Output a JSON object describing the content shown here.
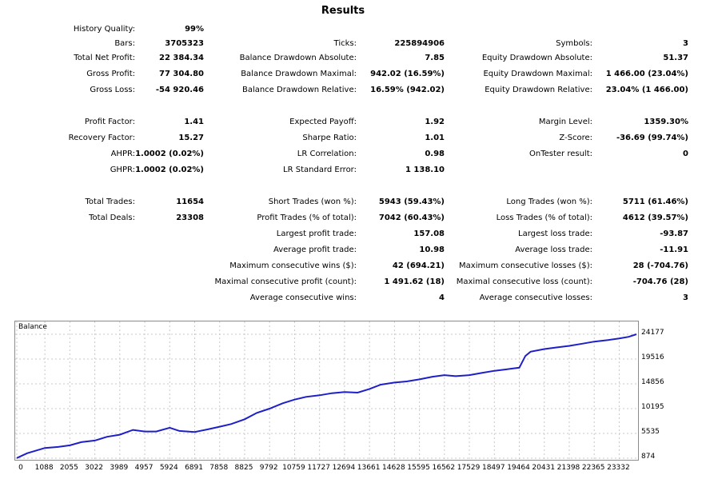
{
  "report": {
    "title": "Results",
    "stats": [
      {
        "id": "history-quality",
        "label": "History Quality:",
        "value": "99%",
        "col": 0,
        "row": 0
      },
      {
        "id": "bars",
        "label": "Bars:",
        "value": "3705323",
        "col": 0,
        "row": 1
      },
      {
        "id": "total-net-profit",
        "label": "Total Net Profit:",
        "value": "22 384.34",
        "col": 0,
        "row": 2
      },
      {
        "id": "gross-profit",
        "label": "Gross Profit:",
        "value": "77 304.80",
        "col": 0,
        "row": 3
      },
      {
        "id": "gross-loss",
        "label": "Gross Loss:",
        "value": "-54 920.46",
        "col": 0,
        "row": 4
      },
      {
        "id": "profit-factor",
        "label": "Profit Factor:",
        "value": "1.41",
        "col": 0,
        "row": 6
      },
      {
        "id": "recovery-factor",
        "label": "Recovery Factor:",
        "value": "15.27",
        "col": 0,
        "row": 7
      },
      {
        "id": "ahpr",
        "label": "AHPR:",
        "value": "1.0002 (0.02%)",
        "col": 0,
        "row": 8
      },
      {
        "id": "ghpr",
        "label": "GHPR:",
        "value": "1.0002 (0.02%)",
        "col": 0,
        "row": 9
      },
      {
        "id": "total-trades",
        "label": "Total Trades:",
        "value": "11654",
        "col": 0,
        "row": 11
      },
      {
        "id": "total-deals",
        "label": "Total Deals:",
        "value": "23308",
        "col": 0,
        "row": 12
      },
      {
        "id": "ticks",
        "label": "Ticks:",
        "value": "225894906",
        "col": 1,
        "row": 1
      },
      {
        "id": "balance-dd-absolute",
        "label": "Balance Drawdown Absolute:",
        "value": "7.85",
        "col": 1,
        "row": 2
      },
      {
        "id": "balance-dd-maximal",
        "label": "Balance Drawdown Maximal:",
        "value": "942.02 (16.59%)",
        "col": 1,
        "row": 3
      },
      {
        "id": "balance-dd-relative",
        "label": "Balance Drawdown Relative:",
        "value": "16.59% (942.02)",
        "col": 1,
        "row": 4
      },
      {
        "id": "expected-payoff",
        "label": "Expected Payoff:",
        "value": "1.92",
        "col": 1,
        "row": 6
      },
      {
        "id": "sharpe-ratio",
        "label": "Sharpe Ratio:",
        "value": "1.01",
        "col": 1,
        "row": 7
      },
      {
        "id": "lr-correlation",
        "label": "LR Correlation:",
        "value": "0.98",
        "col": 1,
        "row": 8
      },
      {
        "id": "lr-standard-error",
        "label": "LR Standard Error:",
        "value": "1 138.10",
        "col": 1,
        "row": 9
      },
      {
        "id": "short-trades",
        "label": "Short Trades (won %):",
        "value": "5943 (59.43%)",
        "col": 1,
        "row": 11
      },
      {
        "id": "profit-trades",
        "label": "Profit Trades (% of total):",
        "value": "7042 (60.43%)",
        "col": 1,
        "row": 12
      },
      {
        "id": "largest-profit-trade",
        "label": "Largest profit trade:",
        "value": "157.08",
        "col": 1,
        "row": 13
      },
      {
        "id": "average-profit-trade",
        "label": "Average profit trade:",
        "value": "10.98",
        "col": 1,
        "row": 14
      },
      {
        "id": "max-consecutive-wins",
        "label": "Maximum consecutive wins ($):",
        "value": "42 (694.21)",
        "col": 1,
        "row": 15
      },
      {
        "id": "maximal-consecutive-profit",
        "label": "Maximal consecutive profit (count):",
        "value": "1 491.62 (18)",
        "col": 1,
        "row": 16
      },
      {
        "id": "average-consecutive-wins",
        "label": "Average consecutive wins:",
        "value": "4",
        "col": 1,
        "row": 17
      },
      {
        "id": "symbols",
        "label": "Symbols:",
        "value": "3",
        "col": 2,
        "row": 1
      },
      {
        "id": "equity-dd-absolute",
        "label": "Equity Drawdown Absolute:",
        "value": "51.37",
        "col": 2,
        "row": 2
      },
      {
        "id": "equity-dd-maximal",
        "label": "Equity Drawdown Maximal:",
        "value": "1 466.00 (23.04%)",
        "col": 2,
        "row": 3
      },
      {
        "id": "equity-dd-relative",
        "label": "Equity Drawdown Relative:",
        "value": "23.04% (1 466.00)",
        "col": 2,
        "row": 4
      },
      {
        "id": "margin-level",
        "label": "Margin Level:",
        "value": "1359.30%",
        "col": 2,
        "row": 6
      },
      {
        "id": "z-score",
        "label": "Z-Score:",
        "value": "-36.69 (99.74%)",
        "col": 2,
        "row": 7
      },
      {
        "id": "ontester-result",
        "label": "OnTester result:",
        "value": "0",
        "col": 2,
        "row": 8
      },
      {
        "id": "long-trades",
        "label": "Long Trades (won %):",
        "value": "5711 (61.46%)",
        "col": 2,
        "row": 11
      },
      {
        "id": "loss-trades",
        "label": "Loss Trades (% of total):",
        "value": "4612 (39.57%)",
        "col": 2,
        "row": 12
      },
      {
        "id": "largest-loss-trade",
        "label": "Largest loss trade:",
        "value": "-93.87",
        "col": 2,
        "row": 13
      },
      {
        "id": "average-loss-trade",
        "label": "Average loss trade:",
        "value": "-11.91",
        "col": 2,
        "row": 14
      },
      {
        "id": "max-consecutive-losses",
        "label": "Maximum consecutive losses ($):",
        "value": "28 (-704.76)",
        "col": 2,
        "row": 15
      },
      {
        "id": "maximal-consecutive-loss",
        "label": "Maximal consecutive loss (count):",
        "value": "-704.76 (28)",
        "col": 2,
        "row": 16
      },
      {
        "id": "average-consecutive-losses",
        "label": "Average consecutive losses:",
        "value": "3",
        "col": 2,
        "row": 17
      }
    ]
  },
  "chart_data": {
    "type": "line",
    "title": "Balance",
    "xlabel": "",
    "ylabel": "",
    "line_color": "#1f1fc8",
    "grid": true,
    "xlim": [
      0,
      24000
    ],
    "ylim": [
      874,
      24177
    ],
    "y_ticks": [
      24177,
      19516,
      14856,
      10195,
      5535,
      874
    ],
    "x_ticks": [
      0,
      1088,
      2055,
      3022,
      3989,
      4957,
      5924,
      6891,
      7858,
      8825,
      9792,
      10759,
      11727,
      12694,
      13661,
      14628,
      15595,
      16562,
      17529,
      18497,
      19464,
      20431,
      21398,
      22365,
      23332
    ],
    "series": [
      {
        "name": "Balance",
        "x": [
          0,
          400,
          1088,
          1600,
          2055,
          2500,
          3022,
          3500,
          3989,
          4500,
          4957,
          5400,
          5924,
          6300,
          6891,
          7400,
          7858,
          8300,
          8825,
          9300,
          9792,
          10300,
          10759,
          11200,
          11727,
          12200,
          12694,
          13200,
          13661,
          14100,
          14628,
          15100,
          15595,
          16100,
          16562,
          17000,
          17529,
          18000,
          18497,
          19000,
          19464,
          19700,
          19900,
          20431,
          20900,
          21398,
          21900,
          22365,
          22900,
          23332,
          23700,
          24000
        ],
        "y": [
          900,
          1800,
          2800,
          3000,
          3300,
          3900,
          4200,
          4900,
          5300,
          6200,
          5900,
          5900,
          6600,
          6000,
          5800,
          6300,
          6800,
          7300,
          8200,
          9400,
          10200,
          11200,
          11900,
          12400,
          12700,
          13100,
          13300,
          13200,
          13900,
          14700,
          15100,
          15300,
          15700,
          16200,
          16500,
          16300,
          16500,
          16900,
          17300,
          17600,
          17900,
          20100,
          20900,
          21400,
          21700,
          22000,
          22400,
          22800,
          23100,
          23400,
          23700,
          24177
        ]
      }
    ]
  }
}
